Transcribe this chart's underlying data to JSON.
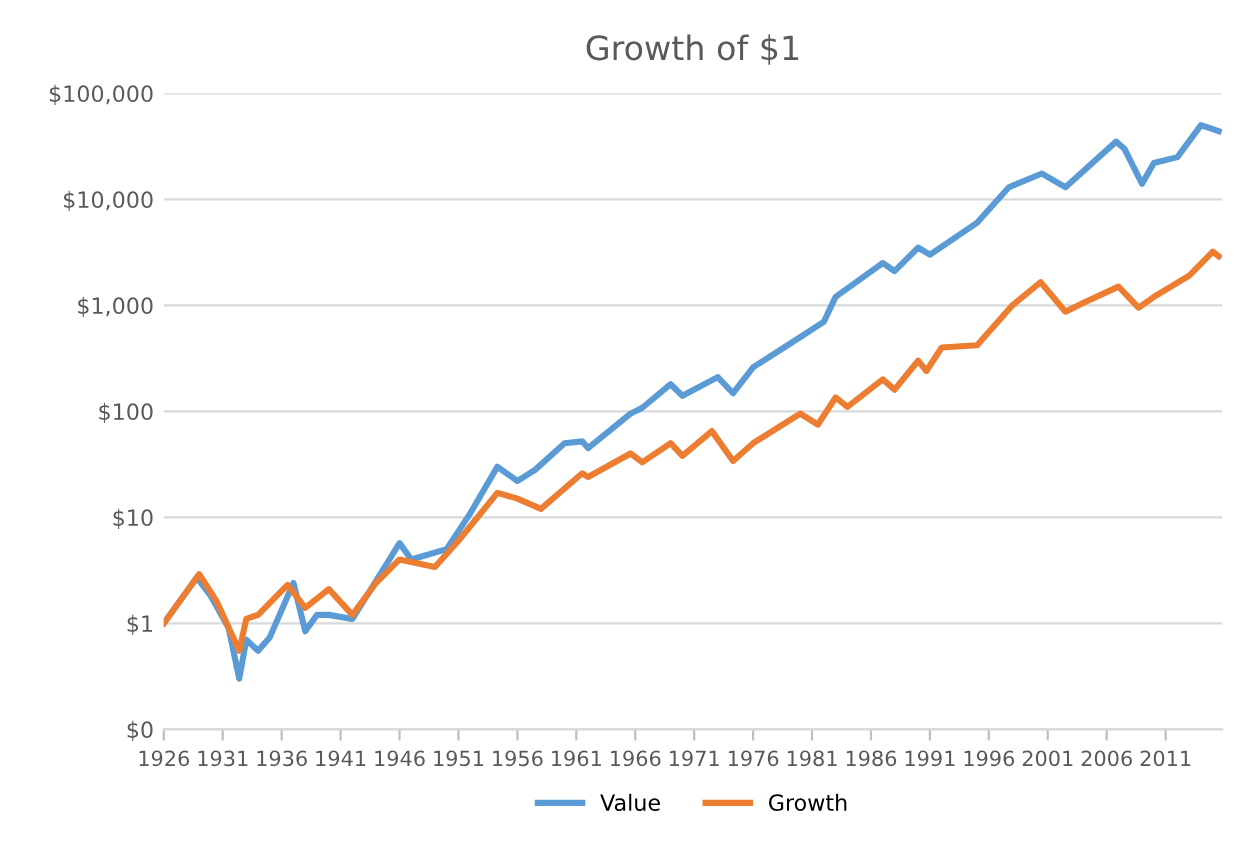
{
  "chart_data": {
    "type": "line",
    "title": "Growth of $1",
    "log": "y",
    "grid": "y",
    "legend": "bottom",
    "marker": "none",
    "line_style": "solid",
    "xlim": [
      1926,
      2015.8
    ],
    "xticks": [
      1926,
      1931,
      1936,
      1941,
      1946,
      1951,
      1956,
      1961,
      1966,
      1971,
      1976,
      1981,
      1986,
      1991,
      1996,
      2001,
      2006,
      2011
    ],
    "ylim": [
      0.1,
      100000
    ],
    "yticks": [
      {
        "value": 0.1,
        "label": "$0"
      },
      {
        "value": 1,
        "label": "$1"
      },
      {
        "value": 10,
        "label": "$10"
      },
      {
        "value": 100,
        "label": "$100"
      },
      {
        "value": 1000,
        "label": "$1,000"
      },
      {
        "value": 10000,
        "label": "$10,000"
      },
      {
        "value": 100000,
        "label": "$100,000"
      }
    ],
    "series": [
      {
        "name": "Value",
        "color": "#5b9bd5",
        "x": [
          1926,
          1928.8,
          1930,
          1931.5,
          1932.4,
          1933,
          1934,
          1935,
          1937,
          1938,
          1939,
          1940,
          1942,
          1944,
          1946,
          1947,
          1950,
          1952,
          1954.3,
          1956,
          1957.5,
          1960,
          1961.5,
          1962,
          1965.6,
          1966.6,
          1969,
          1970,
          1973,
          1974.3,
          1976,
          1980,
          1982,
          1983,
          1987,
          1988,
          1990,
          1991,
          1995,
          1997.7,
          2000.5,
          2002.5,
          2006.8,
          2007.5,
          2009,
          2010,
          2012,
          2014,
          2015.5
        ],
        "values": [
          1,
          2.7,
          1.8,
          0.9,
          0.3,
          0.7,
          0.55,
          0.74,
          2.4,
          0.84,
          1.2,
          1.2,
          1.1,
          2.5,
          5.7,
          4,
          5,
          10.9,
          30,
          22,
          28,
          50,
          52,
          45,
          95,
          108,
          180,
          140,
          210,
          148,
          260,
          500,
          700,
          1200,
          2500,
          2100,
          3500,
          3000,
          6000,
          13000,
          17500,
          13000,
          35000,
          30000,
          14000,
          22000,
          25000,
          50000,
          44000
        ]
      },
      {
        "name": "Growth",
        "color": "#ed7d31",
        "x": [
          1926,
          1929,
          1930.5,
          1932.4,
          1933,
          1934,
          1936.5,
          1938,
          1940,
          1942,
          1944,
          1946,
          1949,
          1951,
          1954.3,
          1956,
          1958,
          1961.5,
          1962,
          1965.6,
          1966.6,
          1969,
          1970,
          1972.5,
          1974.3,
          1976,
          1980,
          1981.5,
          1983,
          1984,
          1987,
          1988,
          1990,
          1990.7,
          1992,
          1995,
          1998,
          2000.4,
          2002.5,
          2004,
          2007,
          2008.7,
          2010,
          2013,
          2015,
          2015.5
        ],
        "values": [
          1,
          2.9,
          1.6,
          0.55,
          1.1,
          1.2,
          2.3,
          1.4,
          2.1,
          1.2,
          2.4,
          4,
          3.4,
          6,
          17,
          15,
          12,
          26,
          24,
          40,
          33,
          50,
          38,
          65,
          34,
          50,
          95,
          75,
          135,
          110,
          200,
          160,
          300,
          240,
          400,
          420,
          1000,
          1650,
          870,
          1050,
          1500,
          950,
          1200,
          1900,
          3200,
          2900
        ]
      }
    ]
  }
}
